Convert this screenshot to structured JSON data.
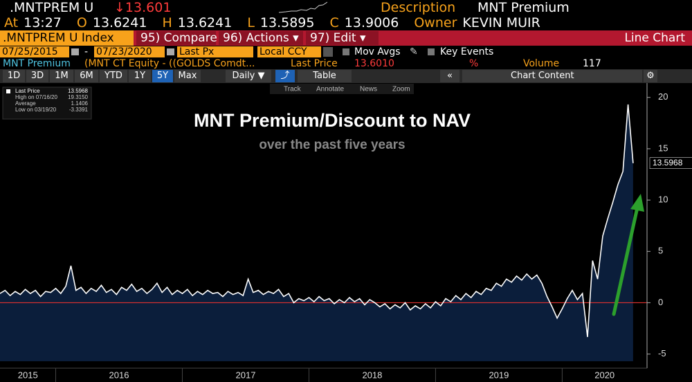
{
  "header": {
    "ticker": ".MNTPREM U",
    "change": "↓13.601",
    "description_label": "Description",
    "description": "MNT Premium",
    "quote": [
      {
        "label": "At",
        "value": "13:27"
      },
      {
        "label": "O",
        "value": "13.6241"
      },
      {
        "label": "H",
        "value": "13.6241"
      },
      {
        "label": "L",
        "value": "13.5895"
      },
      {
        "label": "C",
        "value": "13.9006"
      },
      {
        "label": "Owner",
        "value": "KEVIN MUIR"
      }
    ]
  },
  "menu": {
    "security": ".MNTPREM U Index",
    "tabs": [
      "95) Compare",
      "96) Actions ▾",
      "97) Edit ▾"
    ],
    "view": "Line Chart"
  },
  "controls": {
    "start": "07/25/2015",
    "end": "07/23/2020",
    "field": "Last Px",
    "currency": "Local CCY",
    "options": [
      "Mov Avgs",
      "Key Events"
    ]
  },
  "info": {
    "name": "MNT Premium",
    "formula": "(MNT CT Equity - ((GOLDS Comdt...",
    "price_label": "Last Price",
    "price": "13.6010",
    "unit": "%",
    "volume_label": "Volume",
    "volume": "117"
  },
  "toolbar": {
    "ranges": [
      "1D",
      "3D",
      "1M",
      "6M",
      "YTD",
      "1Y",
      "5Y",
      "Max"
    ],
    "selected_range": 6,
    "frequency": "Daily ▼",
    "table": "Table",
    "content": "Chart Content"
  },
  "chart_tools": [
    "Track",
    "Annotate",
    "News",
    "Zoom"
  ],
  "chart_data": {
    "type": "line",
    "title": "MNT Premium/Discount to NAV",
    "subtitle": "over the past five years",
    "stats": [
      {
        "label": "High on 07/16/20",
        "value": "19.3150"
      },
      {
        "label": "Average",
        "value": "1.1406"
      },
      {
        "label": "Low on 03/19/20",
        "value": "-3.3391"
      }
    ],
    "x": [
      2015.56,
      2015.6,
      2015.64,
      2015.68,
      2015.72,
      2015.76,
      2015.8,
      2015.84,
      2015.88,
      2015.92,
      2015.96,
      2016.0,
      2016.04,
      2016.08,
      2016.12,
      2016.16,
      2016.2,
      2016.24,
      2016.28,
      2016.32,
      2016.36,
      2016.4,
      2016.44,
      2016.48,
      2016.52,
      2016.56,
      2016.6,
      2016.64,
      2016.68,
      2016.72,
      2016.76,
      2016.8,
      2016.84,
      2016.88,
      2016.92,
      2016.96,
      2017.0,
      2017.04,
      2017.08,
      2017.12,
      2017.16,
      2017.2,
      2017.24,
      2017.28,
      2017.32,
      2017.36,
      2017.4,
      2017.44,
      2017.48,
      2017.52,
      2017.56,
      2017.6,
      2017.64,
      2017.68,
      2017.72,
      2017.76,
      2017.8,
      2017.84,
      2017.88,
      2017.92,
      2017.96,
      2018.0,
      2018.04,
      2018.08,
      2018.12,
      2018.16,
      2018.2,
      2018.24,
      2018.28,
      2018.32,
      2018.36,
      2018.4,
      2018.44,
      2018.48,
      2018.52,
      2018.56,
      2018.6,
      2018.64,
      2018.68,
      2018.72,
      2018.76,
      2018.8,
      2018.84,
      2018.88,
      2018.92,
      2018.96,
      2019.0,
      2019.04,
      2019.08,
      2019.12,
      2019.16,
      2019.2,
      2019.24,
      2019.28,
      2019.32,
      2019.36,
      2019.4,
      2019.44,
      2019.48,
      2019.52,
      2019.56,
      2019.6,
      2019.64,
      2019.68,
      2019.72,
      2019.76,
      2019.8,
      2019.84,
      2019.88,
      2019.92,
      2019.96,
      2020.0,
      2020.04,
      2020.08,
      2020.12,
      2020.16,
      2020.2,
      2020.24,
      2020.28,
      2020.32,
      2020.36,
      2020.4,
      2020.44,
      2020.48,
      2020.52,
      2020.56
    ],
    "series": [
      {
        "name": "Last Price",
        "color": "#ffffff",
        "fill": "#0b1e3b",
        "values": [
          0.9,
          1.2,
          0.7,
          1.1,
          0.8,
          1.3,
          0.9,
          1.2,
          0.6,
          1.1,
          1.0,
          1.4,
          0.9,
          1.6,
          3.6,
          1.2,
          1.5,
          0.9,
          1.4,
          1.1,
          1.7,
          1.0,
          1.3,
          0.8,
          1.5,
          1.2,
          1.8,
          1.1,
          1.4,
          0.9,
          1.3,
          1.9,
          1.0,
          1.5,
          0.8,
          1.2,
          0.9,
          1.3,
          0.7,
          1.1,
          0.8,
          1.2,
          0.9,
          1.0,
          0.6,
          1.1,
          0.8,
          1.0,
          0.7,
          2.3,
          1.0,
          1.2,
          0.8,
          1.1,
          0.9,
          1.3,
          0.6,
          0.9,
          0.0,
          0.4,
          0.2,
          0.5,
          0.1,
          0.6,
          0.2,
          0.4,
          -0.1,
          0.3,
          0.0,
          0.5,
          0.1,
          0.4,
          -0.2,
          0.3,
          0.0,
          -0.4,
          -0.1,
          -0.6,
          -0.2,
          -0.5,
          0.0,
          -0.7,
          -0.3,
          -0.6,
          -0.1,
          -0.5,
          0.1,
          -0.3,
          0.4,
          0.1,
          0.7,
          0.3,
          0.9,
          0.5,
          1.1,
          0.8,
          1.4,
          1.2,
          1.9,
          1.6,
          2.3,
          2.0,
          2.6,
          2.2,
          2.8,
          2.3,
          2.7,
          1.9,
          0.6,
          -0.4,
          -1.5,
          -0.6,
          0.4,
          1.2,
          0.3,
          0.9,
          -3.3391,
          4.1,
          2.3,
          6.5,
          8.2,
          9.8,
          11.5,
          12.8,
          19.315,
          13.5968
        ]
      }
    ],
    "xlim": [
      2015.56,
      2020.67
    ],
    "xticks": [
      2015,
      2016,
      2017,
      2018,
      2019,
      2020
    ],
    "ylim": [
      -5.7,
      21.4
    ],
    "yticks": [
      -5,
      0,
      5,
      10,
      15,
      20
    ],
    "zero_line_color": "#e0302f",
    "legend": "upper left"
  }
}
